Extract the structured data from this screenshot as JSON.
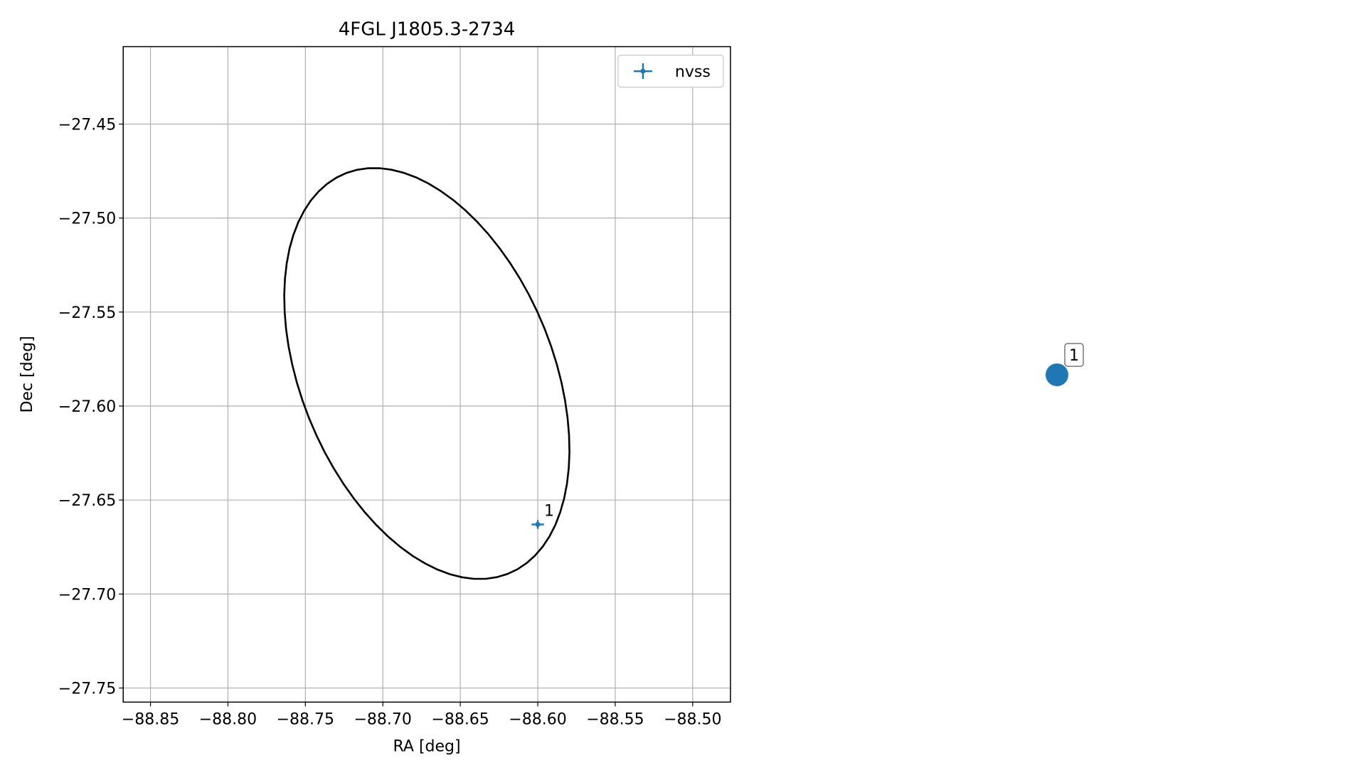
{
  "chart_data": [
    {
      "type": "scatter",
      "title": "4FGL J1805.3-2734",
      "xlabel": "RA [deg]",
      "ylabel": "Dec [deg]",
      "xlim": [
        -88.8676,
        -88.4756
      ],
      "ylim": [
        -27.7575,
        -27.4088
      ],
      "xticks": [
        {
          "value": -88.85,
          "label": "−88.85"
        },
        {
          "value": -88.8,
          "label": "−88.80"
        },
        {
          "value": -88.75,
          "label": "−88.75"
        },
        {
          "value": -88.7,
          "label": "−88.70"
        },
        {
          "value": -88.65,
          "label": "−88.65"
        },
        {
          "value": -88.6,
          "label": "−88.60"
        },
        {
          "value": -88.55,
          "label": "−88.55"
        },
        {
          "value": -88.5,
          "label": "−88.50"
        }
      ],
      "yticks": [
        {
          "value": -27.45,
          "label": "−27.45"
        },
        {
          "value": -27.5,
          "label": "−27.50"
        },
        {
          "value": -27.55,
          "label": "−27.55"
        },
        {
          "value": -27.6,
          "label": "−27.60"
        },
        {
          "value": -27.65,
          "label": "−27.65"
        },
        {
          "value": -27.7,
          "label": "−27.70"
        },
        {
          "value": -27.75,
          "label": "−27.75"
        }
      ],
      "grid": true,
      "legend": "upper right",
      "ellipse": {
        "ra": -88.6716,
        "dec": -27.5827,
        "semi_major": 0.1197,
        "semi_minor": 0.0781,
        "angle": -57.5,
        "color": "#000000"
      },
      "series": [
        {
          "name": "nvss",
          "color": "#1f77b4",
          "x": [
            -88.6
          ],
          "values": [
            -27.663
          ],
          "x_err": [
            0.004
          ],
          "y_err": [
            0.0023
          ],
          "labels": [
            "1"
          ]
        }
      ]
    },
    {
      "type": "marker",
      "color": "#1f77b4",
      "labels": [
        "1"
      ]
    }
  ]
}
